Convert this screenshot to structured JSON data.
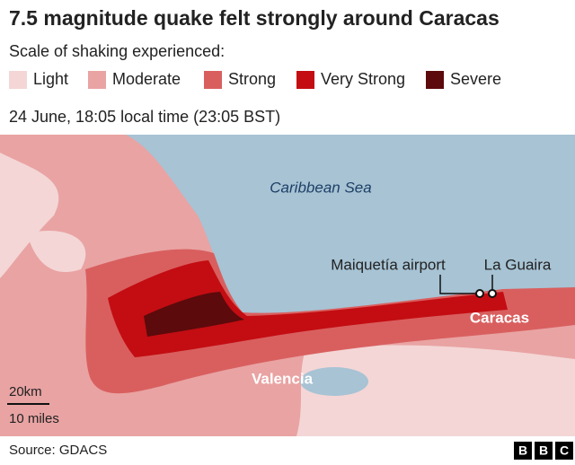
{
  "title": "7.5 magnitude quake felt strongly around Caracas",
  "subtitle": "Scale of shaking experienced:",
  "legend": [
    {
      "label": "Light",
      "color": "#f4d6d6"
    },
    {
      "label": "Moderate",
      "color": "#e9a3a3"
    },
    {
      "label": "Strong",
      "color": "#d95f5f"
    },
    {
      "label": "Very Strong",
      "color": "#c30d12"
    },
    {
      "label": "Severe",
      "color": "#5c0a0c"
    }
  ],
  "timestamp": "24 June, 18:05 local time (23:05 BST)",
  "map_labels": {
    "sea": "Caribbean Sea",
    "airport": "Maiquetía airport",
    "port": "La Guaira",
    "capital": "Caracas",
    "city": "Valencia"
  },
  "scale": {
    "metric": "20km",
    "imperial": "10 miles"
  },
  "source": "Source: GDACS",
  "logo": [
    "B",
    "B",
    "C"
  ]
}
